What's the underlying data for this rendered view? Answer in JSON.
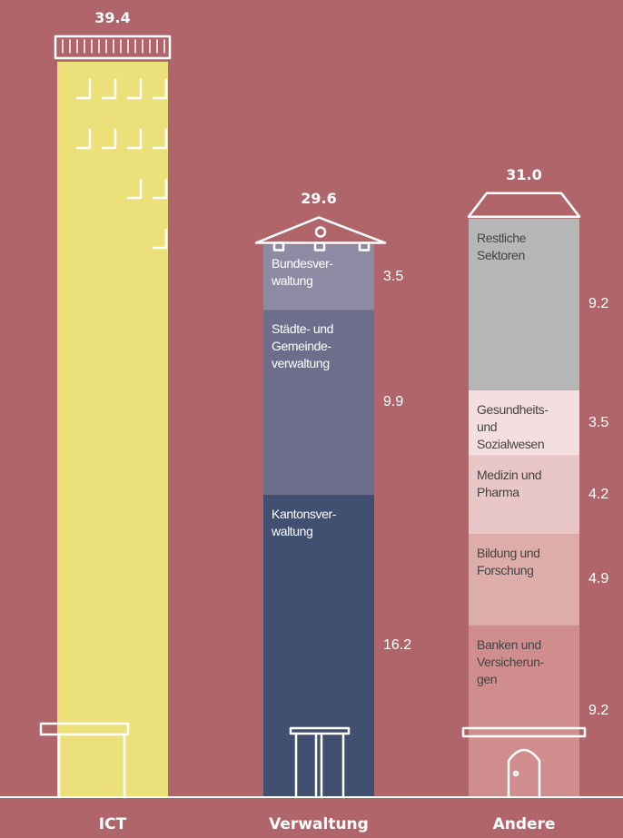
{
  "chart_data": {
    "type": "stacked-bar",
    "categories": [
      "ICT",
      "Verwaltung",
      "Andere"
    ],
    "totals": {
      "values": [
        39.4,
        29.6,
        31
      ],
      "value_labels": [
        "39.4",
        "29.6",
        "31.0"
      ]
    },
    "bars": [
      {
        "label_color": "#ffffff",
        "segments": [
          {
            "value": 39.4,
            "color": "#ece07a"
          }
        ]
      },
      {
        "label_color": "#ffffff",
        "segments": [
          {
            "name": "Kantonsver-\nwaltung",
            "value": 16.2,
            "color": "#414f70"
          },
          {
            "name": "Städte- und\nGemeinde-\nverwaltung",
            "value": 9.9,
            "color": "#6d6e8c"
          },
          {
            "name": "Bundesver-\nwaltung",
            "value": 3.5,
            "color": "#8e8aa3"
          }
        ]
      },
      {
        "label_color": "#444444",
        "segments": [
          {
            "name": "Banken und\nVersicherun-\ngen",
            "value": 9.2,
            "color": "#cf8e8d"
          },
          {
            "name": "Bildung und\nForschung",
            "value": 4.9,
            "color": "#ddadaa"
          },
          {
            "name": "Medizin und\nPharma",
            "value": 4.2,
            "color": "#e8c7c6"
          },
          {
            "name": "Gesundheits-\nund\nSozialwesen",
            "value": 3.5,
            "color": "#f3dfdf"
          },
          {
            "name": "Restliche\nSektoren",
            "value": 9.2,
            "color": "#b6b6b6"
          }
        ]
      }
    ]
  }
}
